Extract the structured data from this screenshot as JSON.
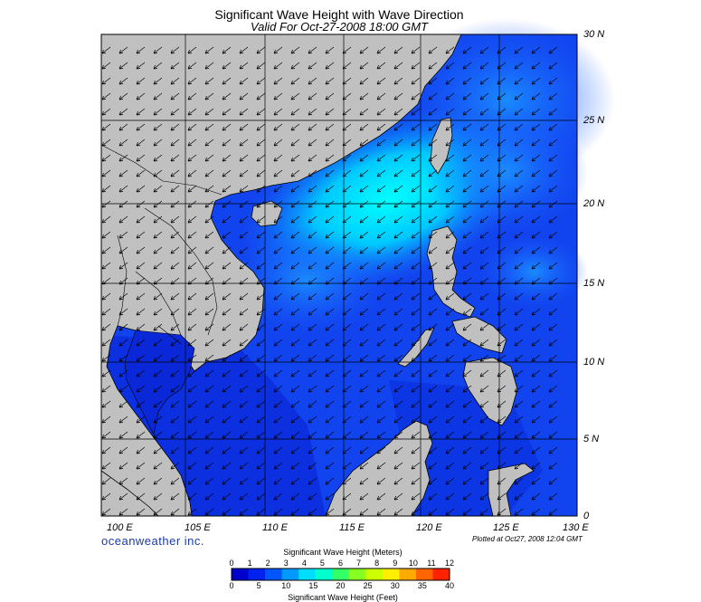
{
  "title": "Significant Wave Height with Wave Direction",
  "subtitle": "Valid For Oct-27-2008 18:00 GMT",
  "lat_labels": [
    "30 N",
    "25 N",
    "20 N",
    "15 N",
    "10 N",
    "5 N",
    "0"
  ],
  "lon_labels": [
    "100 E",
    "105 E",
    "110 E",
    "115 E",
    "120 E",
    "125 E",
    "130 E"
  ],
  "brand": "oceanweather inc.",
  "plotted": "Plotted at Oct27, 2008 12:04 GMT",
  "colorbar": {
    "title_meters": "Significant Wave Height (Meters)",
    "title_feet": "Significant Wave Height (Feet)",
    "meter_ticks": [
      "0",
      "1",
      "2",
      "3",
      "4",
      "5",
      "6",
      "7",
      "8",
      "9",
      "10",
      "11",
      "12"
    ],
    "feet_ticks": [
      "0",
      "5",
      "10",
      "15",
      "20",
      "25",
      "30",
      "35",
      "40"
    ],
    "colors": [
      "#0000cc",
      "#0022ee",
      "#0055ff",
      "#0099ff",
      "#00ddff",
      "#00ffcc",
      "#33ff66",
      "#88ff22",
      "#ccff00",
      "#ffee00",
      "#ffaa00",
      "#ff6600",
      "#ff2200"
    ]
  },
  "colors": {
    "land": "#c0c0c0",
    "sea_low": "#0a28d8",
    "sea_mid": "#1a66ff",
    "sea_high": "#00e8ff",
    "grid": "#000000"
  }
}
